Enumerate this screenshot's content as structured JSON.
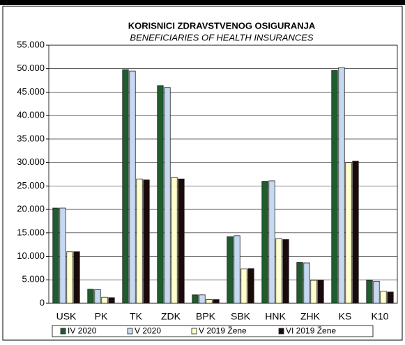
{
  "chart_data": {
    "type": "bar",
    "title": "KORISNICI ZDRAVSTVENOG OSIGURANJA",
    "subtitle": "BENEFICIARIES OF HEALTH INSURANCES",
    "categories": [
      "USK",
      "PK",
      "TK",
      "ZDK",
      "BPK",
      "SBK",
      "HNK",
      "ZHK",
      "KS",
      "K10"
    ],
    "series": [
      {
        "name": "IV 2020",
        "color": "#1f5c2e",
        "values": [
          20300,
          3000,
          49800,
          46400,
          1800,
          14200,
          26000,
          8700,
          49600,
          4900
        ]
      },
      {
        "name": "V 2020",
        "color": "#c6d9f1",
        "values": [
          20300,
          2900,
          49500,
          46000,
          1800,
          14400,
          26100,
          8600,
          50200,
          4700
        ]
      },
      {
        "name": "V 2019 Žene",
        "color": "#ffffcc",
        "values": [
          11000,
          1300,
          26500,
          26800,
          800,
          7300,
          13800,
          4900,
          30000,
          2600
        ]
      },
      {
        "name": "VI 2019 Žene",
        "color": "#1a0a0a",
        "values": [
          11000,
          1200,
          26300,
          26500,
          800,
          7400,
          13600,
          4900,
          30300,
          2400
        ]
      }
    ],
    "ylim": [
      0,
      55000
    ],
    "yticks": [
      0,
      {
        "value": 5000,
        "label": "5.000"
      },
      {
        "value": 10000,
        "label": "10.000"
      },
      {
        "value": 15000,
        "label": "15.000"
      },
      {
        "value": 20000,
        "label": "20.000"
      },
      {
        "value": 25000,
        "label": "25.000"
      },
      {
        "value": 30000,
        "label": "30.000"
      },
      {
        "value": 35000,
        "label": "35.000"
      },
      {
        "value": 40000,
        "label": "40.000"
      },
      {
        "value": 45000,
        "label": "45.000"
      },
      {
        "value": 50000,
        "label": "50.000"
      },
      {
        "value": 55000,
        "label": "55.000"
      }
    ],
    "grid": true,
    "legend": "bottom"
  }
}
